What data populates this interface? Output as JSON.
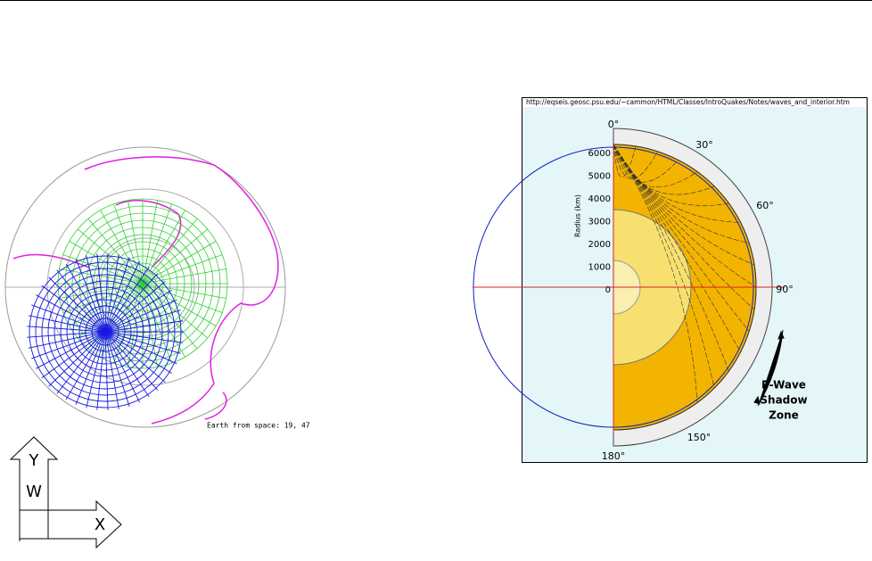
{
  "globe": {
    "caption": "Earth from space: 19, 47"
  },
  "interior": {
    "url": "http://eqseis.geosc.psu.edu/~cammon/HTML/Classes/IntroQuakes/Notes/waves_and_interior.htm",
    "radius_axis": {
      "title": "Radius (km)",
      "labels": [
        "6000",
        "5000",
        "4000",
        "3000",
        "2000",
        "1000",
        "0"
      ]
    },
    "angles": [
      "0°",
      "30°",
      "60°",
      "90°",
      "150°",
      "180°"
    ],
    "shadow_zone": [
      "P-Wave",
      "Shadow",
      "Zone"
    ]
  },
  "ucs": {
    "y": "Y",
    "w": "W",
    "x": "X"
  }
}
